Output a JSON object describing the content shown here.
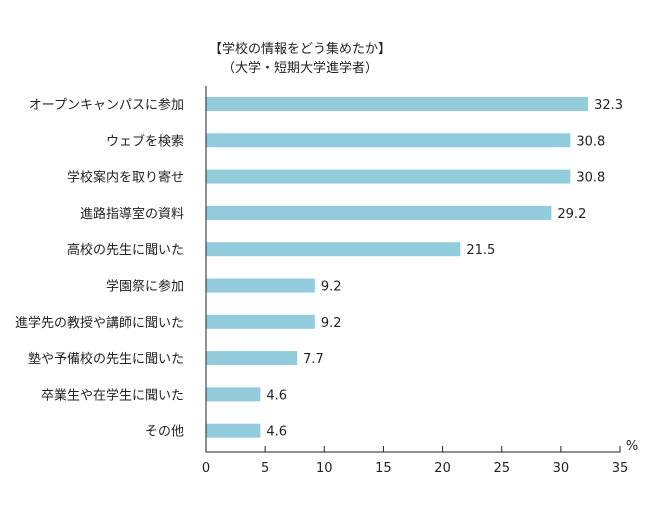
{
  "chart_data": {
    "type": "bar",
    "orientation": "horizontal",
    "title": "【学校の情報をどう集めたか】",
    "subtitle": "（大学・短期大学進学者）",
    "unit": "%",
    "categories": [
      "オープンキャンパスに参加",
      "ウェブを検索",
      "学校案内を取り寄せ",
      "進路指導室の資料",
      "高校の先生に聞いた",
      "学園祭に参加",
      "進学先の教授や講師に聞いた",
      "塾や予備校の先生に聞いた",
      "卒業生や在学生に聞いた",
      "その他"
    ],
    "values": [
      32.3,
      30.8,
      30.8,
      29.2,
      21.5,
      9.2,
      9.2,
      7.7,
      4.6,
      4.6
    ],
    "value_labels": [
      "32.3",
      "30.8",
      "30.8",
      "29.2",
      "21.5",
      "9.2",
      "9.2",
      "7.7",
      "4.6",
      "4.6"
    ],
    "xlim": [
      0,
      35
    ],
    "xticks": [
      "0",
      "5",
      "10",
      "15",
      "20",
      "25",
      "30",
      "35"
    ],
    "bar_color": "#92ccdc",
    "grid": false
  }
}
